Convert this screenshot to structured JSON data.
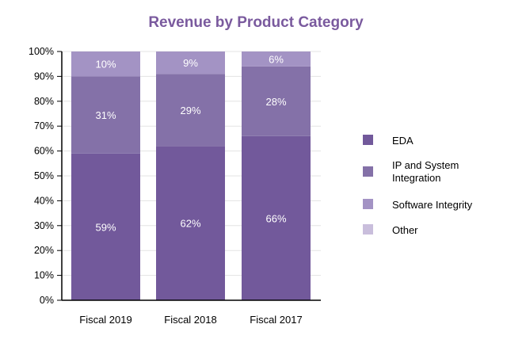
{
  "chart_data": {
    "type": "bar",
    "stacked": true,
    "title": "Revenue by Product Category",
    "xlabel": "",
    "ylabel": "",
    "ylim": [
      0,
      100
    ],
    "y_ticks": [
      "0%",
      "10%",
      "20%",
      "30%",
      "40%",
      "50%",
      "60%",
      "70%",
      "80%",
      "90%",
      "100%"
    ],
    "grid": true,
    "legend_position": "right",
    "categories": [
      "Fiscal 2019",
      "Fiscal 2018",
      "Fiscal 2017"
    ],
    "series": [
      {
        "name": "EDA",
        "values": [
          59,
          62,
          66
        ],
        "labels": [
          "59%",
          "62%",
          "66%"
        ],
        "color": "#72599b"
      },
      {
        "name": "IP and System Integration",
        "values": [
          31,
          29,
          28
        ],
        "labels": [
          "31%",
          "29%",
          "28%"
        ],
        "color": "#8471a8"
      },
      {
        "name": "Software Integrity",
        "values": [
          10,
          9,
          6
        ],
        "labels": [
          "10%",
          "9%",
          "6%"
        ],
        "color": "#a393c4"
      },
      {
        "name": "Other",
        "values": [
          0,
          0,
          0
        ],
        "labels": [
          "",
          "",
          ""
        ],
        "color": "#c9bedc"
      }
    ],
    "title_color": "#7a5a9e"
  }
}
